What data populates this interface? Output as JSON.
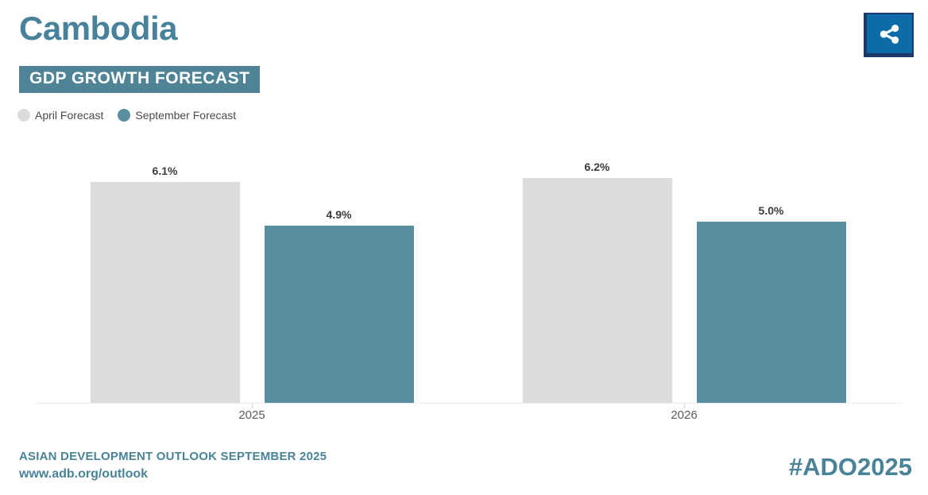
{
  "header": {
    "title": "Cambodia",
    "subtitle": "GDP GROWTH FORECAST"
  },
  "legend": [
    {
      "label": "April Forecast",
      "color": "#DCDCDC"
    },
    {
      "label": "September Forecast",
      "color": "#588E9E"
    }
  ],
  "chart_data": {
    "type": "bar",
    "title": "GDP GROWTH FORECAST",
    "categories": [
      "2025",
      "2026"
    ],
    "series": [
      {
        "name": "April Forecast",
        "color": "#DCDCDC",
        "values": [
          6.1,
          6.2
        ]
      },
      {
        "name": "September Forecast",
        "color": "#588E9E",
        "values": [
          4.9,
          5.0
        ]
      }
    ],
    "value_labels": [
      [
        "6.1%",
        "6.2%"
      ],
      [
        "4.9%",
        "5.0%"
      ]
    ],
    "xlabel": "",
    "ylabel": "",
    "ylim": [
      0,
      7
    ],
    "grid": false,
    "legend_position": "top-left"
  },
  "footer": {
    "source_line": "ASIAN DEVELOPMENT OUTLOOK SEPTEMBER 2025",
    "url": "www.adb.org/outlook",
    "hashtag": "#ADO2025"
  },
  "colors": {
    "teal_text": "#47829A",
    "banner_bg": "#4F8496",
    "bar_april": "#DCDCDC",
    "bar_september": "#588E9E",
    "share_button_bg": "#0D6CA8",
    "share_button_border": "#1C3A67",
    "value_label": "#3B3B3B",
    "axis_line": "#ECECEC",
    "category_label": "#5C5C5C"
  }
}
